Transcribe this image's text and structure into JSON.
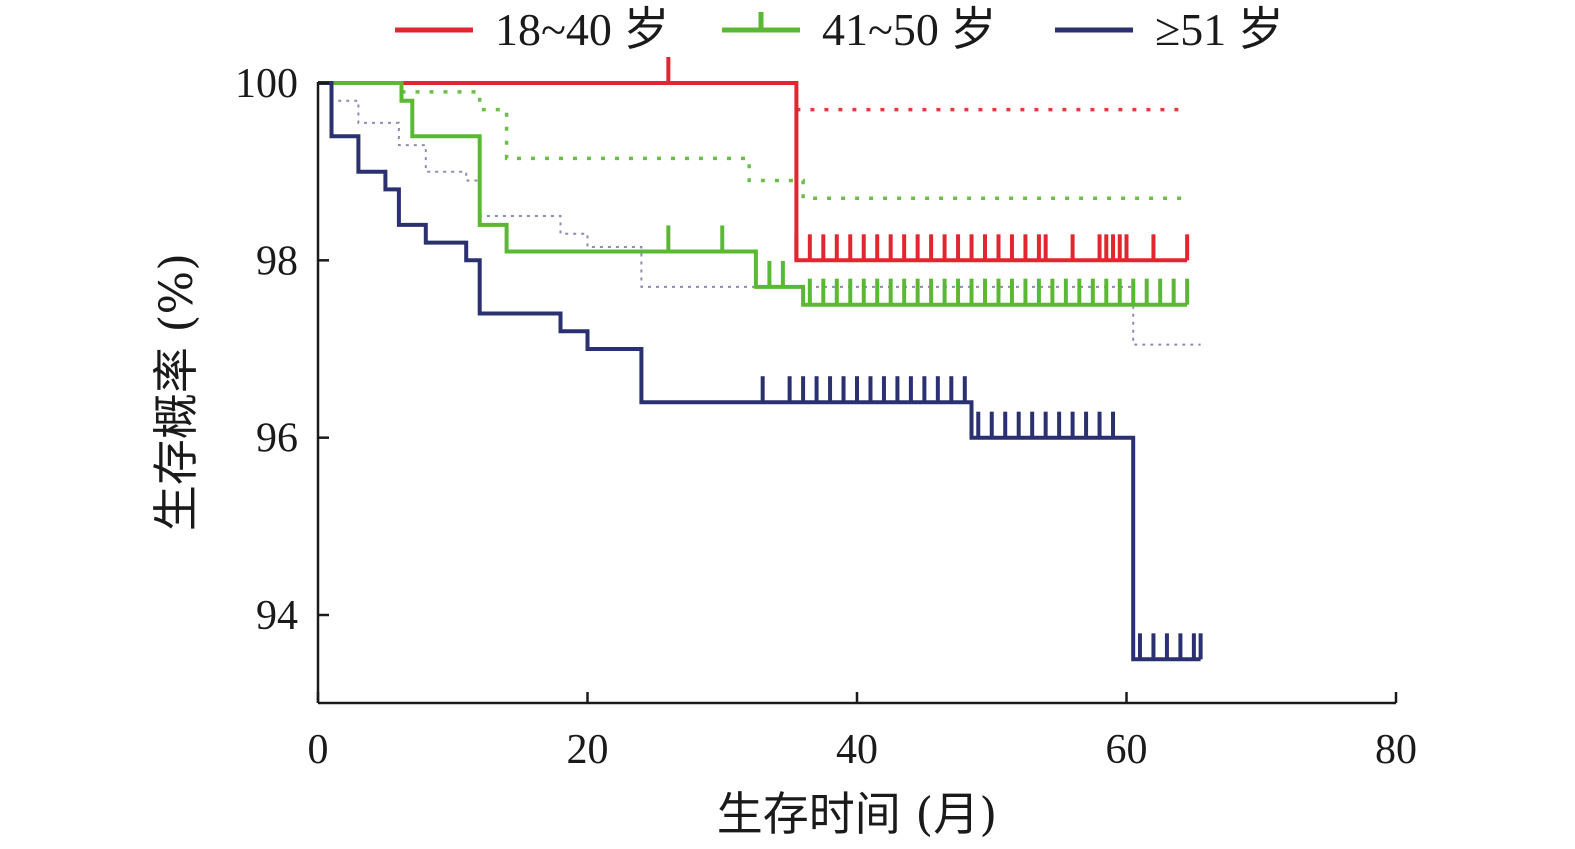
{
  "chart_data": {
    "type": "line",
    "xlabel": "生存时间 (月)",
    "ylabel": "生存概率 (%)",
    "xlim": [
      0,
      80
    ],
    "ylim": [
      93,
      100
    ],
    "xticks": [
      0,
      20,
      40,
      60,
      80
    ],
    "yticks": [
      94,
      96,
      98,
      100
    ],
    "legend_position": "top",
    "series": [
      {
        "name": "18~40 岁",
        "color": "#e0262f",
        "points": [
          [
            0,
            100
          ],
          [
            35.5,
            100
          ],
          [
            35.5,
            98.0
          ],
          [
            64.5,
            98.0
          ]
        ],
        "censor_x": [
          26,
          35.5,
          36.5,
          37.5,
          38.5,
          39.5,
          40.5,
          41.5,
          42.5,
          43.5,
          44.5,
          45.5,
          46.5,
          47.5,
          48.5,
          49.5,
          50.5,
          51.5,
          52.5,
          53.5,
          54,
          56,
          58,
          58.5,
          59,
          59.5,
          60,
          62,
          64.5
        ],
        "ci": [
          {
            "upper": [
              [
                35.5,
                99.7
              ],
              [
                64.5,
                99.7
              ]
            ]
          }
        ]
      },
      {
        "name": "41~50 岁",
        "color": "#5bb833",
        "points": [
          [
            0,
            100
          ],
          [
            6.2,
            100
          ],
          [
            6.2,
            99.8
          ],
          [
            7,
            99.8
          ],
          [
            7,
            99.4
          ],
          [
            12,
            99.4
          ],
          [
            12,
            98.4
          ],
          [
            14,
            98.4
          ],
          [
            14,
            98.1
          ],
          [
            32.5,
            98.1
          ],
          [
            32.5,
            97.7
          ],
          [
            34.5,
            97.7
          ],
          [
            34.5,
            97.7
          ],
          [
            36,
            97.7
          ],
          [
            36,
            97.5
          ],
          [
            64.5,
            97.5
          ]
        ],
        "censor_x": [
          26,
          30,
          33.5,
          34.5,
          36.5,
          37.5,
          38.5,
          39.5,
          40.5,
          41.5,
          42.5,
          43.5,
          44.5,
          45.5,
          46.5,
          47.5,
          48.5,
          49.5,
          50.5,
          51.5,
          52.5,
          53.5,
          54.5,
          55.5,
          56.5,
          57.5,
          58.5,
          59.5,
          60.5,
          61.5,
          62.5,
          63.5,
          64.5
        ],
        "ci": [
          {
            "upper": [
              [
                6.2,
                99.9
              ],
              [
                12,
                99.9
              ],
              [
                12,
                99.7
              ],
              [
                14,
                99.7
              ],
              [
                14,
                99.15
              ],
              [
                32,
                99.15
              ],
              [
                32,
                98.9
              ],
              [
                36,
                98.9
              ],
              [
                36,
                98.7
              ],
              [
                64.5,
                98.7
              ]
            ]
          }
        ]
      },
      {
        "name": "≥51 岁",
        "color": "#2b3070",
        "points": [
          [
            0,
            100
          ],
          [
            1,
            100
          ],
          [
            1,
            99.4
          ],
          [
            3,
            99.4
          ],
          [
            3,
            99.0
          ],
          [
            5,
            99.0
          ],
          [
            5,
            98.8
          ],
          [
            6,
            98.8
          ],
          [
            6,
            98.4
          ],
          [
            8,
            98.4
          ],
          [
            8,
            98.2
          ],
          [
            11,
            98.2
          ],
          [
            11,
            98.0
          ],
          [
            12,
            98.0
          ],
          [
            12,
            97.4
          ],
          [
            18,
            97.4
          ],
          [
            18,
            97.2
          ],
          [
            20,
            97.2
          ],
          [
            20,
            97.0
          ],
          [
            24,
            97.0
          ],
          [
            24,
            96.4
          ],
          [
            48.5,
            96.4
          ],
          [
            48.5,
            96.0
          ],
          [
            60.5,
            96.0
          ],
          [
            60.5,
            93.5
          ],
          [
            65.5,
            93.5
          ]
        ],
        "censor_x": [
          33,
          35,
          36,
          37,
          38,
          39,
          40,
          41,
          42,
          43,
          44,
          45,
          46,
          47,
          48,
          49,
          50,
          51,
          52,
          53,
          54,
          55,
          56,
          57,
          58,
          59,
          61,
          62,
          63,
          64,
          65,
          65.5
        ],
        "ci": [
          {
            "upper": [
              [
                1.5,
                99.8
              ],
              [
                3,
                99.8
              ],
              [
                3,
                99.55
              ],
              [
                6,
                99.55
              ],
              [
                6,
                99.3
              ],
              [
                8,
                99.3
              ],
              [
                8,
                99.0
              ],
              [
                11,
                99.0
              ],
              [
                11,
                98.9
              ],
              [
                12,
                98.9
              ],
              [
                12,
                98.5
              ],
              [
                18,
                98.5
              ],
              [
                18,
                98.3
              ],
              [
                20,
                98.3
              ],
              [
                20,
                98.15
              ],
              [
                24,
                98.15
              ],
              [
                24,
                97.7
              ],
              [
                60.5,
                97.7
              ],
              [
                60.5,
                97.05
              ],
              [
                65.5,
                97.05
              ]
            ]
          }
        ]
      }
    ]
  }
}
